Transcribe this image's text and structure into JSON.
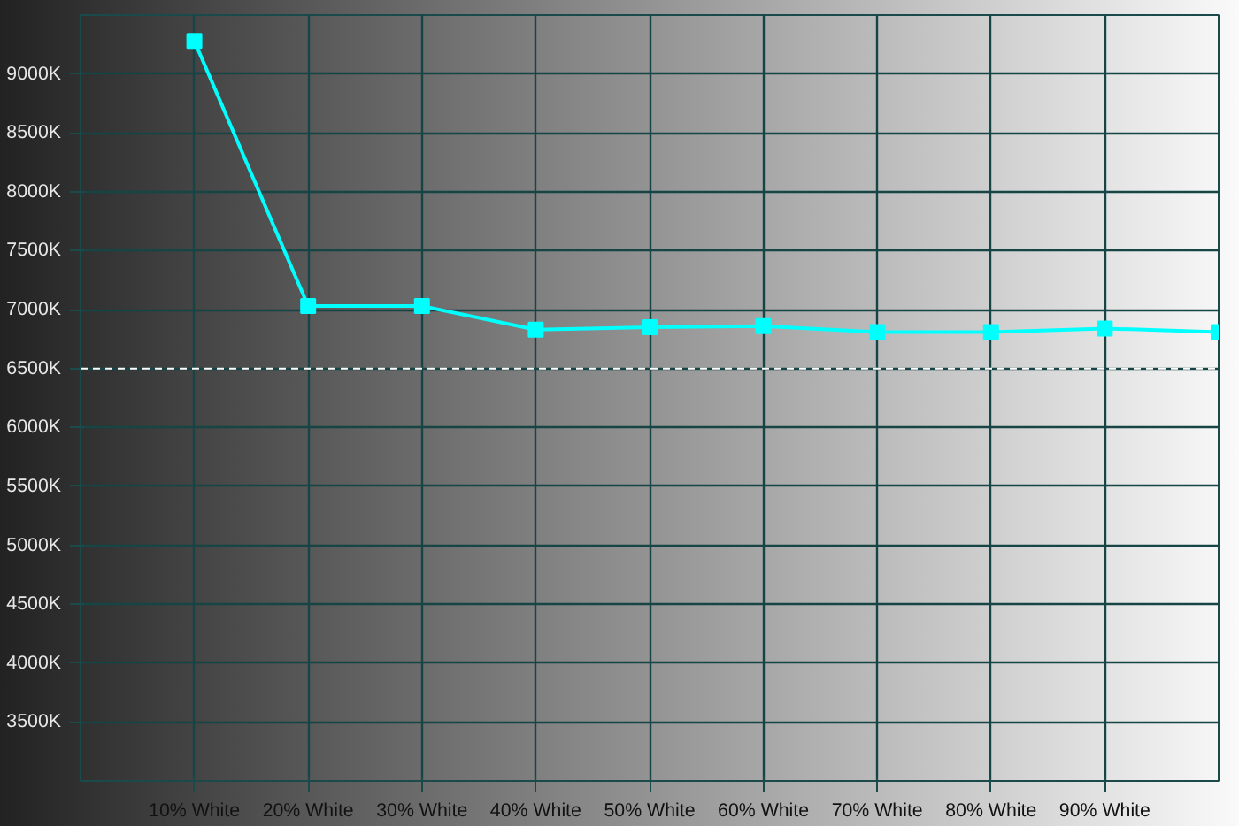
{
  "chart_data": {
    "type": "line",
    "x": [
      10,
      20,
      30,
      40,
      50,
      60,
      70,
      80,
      90,
      100
    ],
    "series": [
      {
        "color": "#00ffff",
        "values": [
          9280,
          7030,
          7030,
          6830,
          6850,
          6860,
          6810,
          6810,
          6840,
          6810
        ]
      }
    ],
    "xlim": [
      0,
      100
    ],
    "ylim": [
      3000,
      9500
    ],
    "xticks": [
      {
        "value": 10,
        "label": "10% White"
      },
      {
        "value": 20,
        "label": "20% White"
      },
      {
        "value": 30,
        "label": "30% White"
      },
      {
        "value": 40,
        "label": "40% White"
      },
      {
        "value": 50,
        "label": "50% White"
      },
      {
        "value": 60,
        "label": "60% White"
      },
      {
        "value": 70,
        "label": "70% White"
      },
      {
        "value": 80,
        "label": "80% White"
      },
      {
        "value": 90,
        "label": "90% White"
      }
    ],
    "yticks": [
      {
        "value": 3500,
        "label": "3500K"
      },
      {
        "value": 4000,
        "label": "4000K"
      },
      {
        "value": 4500,
        "label": "4500K"
      },
      {
        "value": 5000,
        "label": "5000K"
      },
      {
        "value": 5500,
        "label": "5500K"
      },
      {
        "value": 6000,
        "label": "6000K"
      },
      {
        "value": 6500,
        "label": "6500K"
      },
      {
        "value": 7000,
        "label": "7000K"
      },
      {
        "value": 7500,
        "label": "7500K"
      },
      {
        "value": 8000,
        "label": "8000K"
      },
      {
        "value": 8500,
        "label": "8500K"
      },
      {
        "value": 9000,
        "label": "9000K"
      }
    ],
    "ref_lines": [
      {
        "axis": "y",
        "value": 6500,
        "color": "#ffffff",
        "line_style": "dashed"
      }
    ],
    "grid": true,
    "marker": "square",
    "line_style": "solid"
  }
}
